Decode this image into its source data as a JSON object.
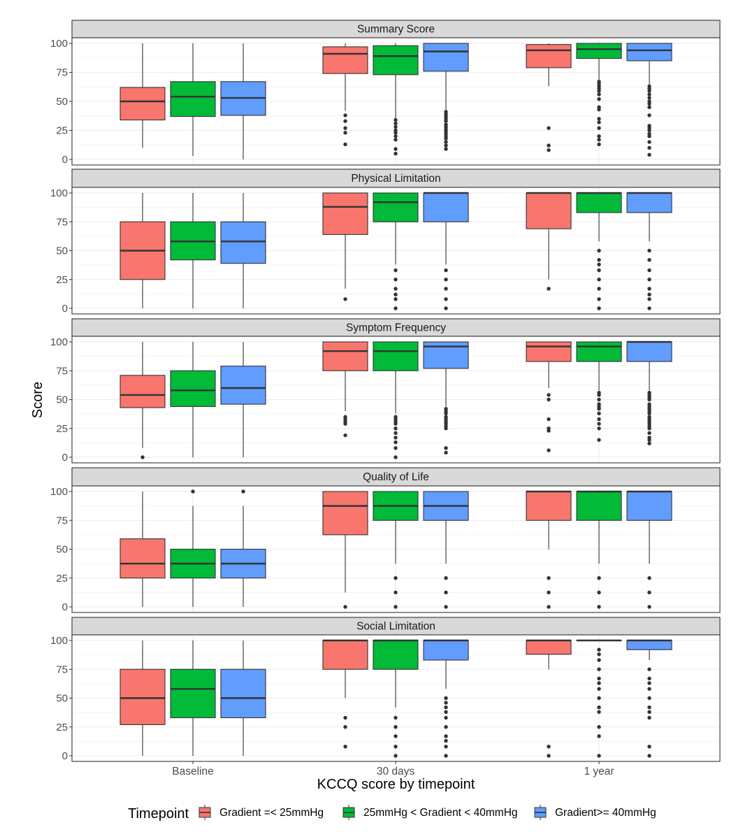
{
  "chart_data": {
    "type": "boxplot",
    "facet_layout": "vertical-stack",
    "ylabel": "Score",
    "xlabel": "KCCQ score by timepoint",
    "categories": [
      "Baseline",
      "30 days",
      "1 year"
    ],
    "ylim": [
      0,
      100
    ],
    "y_ticks": [
      0,
      25,
      50,
      75,
      100
    ],
    "grid": true,
    "legend": {
      "position": "bottom",
      "title": "Timepoint",
      "entries": [
        {
          "name": "Gradient =< 25mmHg",
          "color": "#F8766D"
        },
        {
          "name": "25mmHg < Gradient < 40mmHg",
          "color": "#00BA38"
        },
        {
          "name": "Gradient>= 40mmHg",
          "color": "#619CFF"
        }
      ]
    },
    "panels": [
      {
        "title": "Summary Score",
        "boxes": [
          {
            "category": "Baseline",
            "series": 0,
            "min": 10,
            "q1": 34,
            "median": 50,
            "q3": 62,
            "max": 100,
            "outliers": []
          },
          {
            "category": "Baseline",
            "series": 1,
            "min": 3,
            "q1": 37,
            "median": 54,
            "q3": 67,
            "max": 100,
            "outliers": []
          },
          {
            "category": "Baseline",
            "series": 2,
            "min": 0,
            "q1": 38,
            "median": 53,
            "q3": 67,
            "max": 100,
            "outliers": []
          },
          {
            "category": "30 days",
            "series": 0,
            "min": 42,
            "q1": 74,
            "median": 91,
            "q3": 97,
            "max": 100,
            "outliers": [
              38,
              33,
              27,
              23,
              13
            ]
          },
          {
            "category": "30 days",
            "series": 1,
            "min": 35,
            "q1": 73,
            "median": 89,
            "q3": 98,
            "max": 100,
            "outliers": [
              34,
              31,
              28,
              25,
              23,
              20,
              17,
              9,
              5
            ]
          },
          {
            "category": "30 days",
            "series": 2,
            "min": 42,
            "q1": 76,
            "median": 93,
            "q3": 100,
            "max": 100,
            "outliers": [
              41,
              39,
              37,
              35,
              33,
              30,
              28,
              26,
              24,
              22,
              20,
              18,
              15,
              12,
              9
            ]
          },
          {
            "category": "1 year",
            "series": 0,
            "min": 63,
            "q1": 79,
            "median": 94,
            "q3": 99,
            "max": 100,
            "outliers": [
              27,
              12,
              8
            ]
          },
          {
            "category": "1 year",
            "series": 1,
            "min": 68,
            "q1": 87,
            "median": 95,
            "q3": 100,
            "max": 100,
            "outliers": [
              67,
              65,
              63,
              61,
              59,
              56,
              52,
              45,
              43,
              35,
              32,
              27,
              20,
              17,
              13
            ]
          },
          {
            "category": "1 year",
            "series": 2,
            "min": 64,
            "q1": 85,
            "median": 94,
            "q3": 100,
            "max": 100,
            "outliers": [
              63,
              61,
              59,
              56,
              53,
              50,
              48,
              45,
              38,
              29,
              27,
              25,
              22,
              20,
              15,
              10,
              4
            ]
          }
        ]
      },
      {
        "title": "Physical Limitation",
        "boxes": [
          {
            "category": "Baseline",
            "series": 0,
            "min": 0,
            "q1": 25,
            "median": 50,
            "q3": 75,
            "max": 100,
            "outliers": []
          },
          {
            "category": "Baseline",
            "series": 1,
            "min": 0,
            "q1": 42,
            "median": 58,
            "q3": 75,
            "max": 100,
            "outliers": []
          },
          {
            "category": "Baseline",
            "series": 2,
            "min": 0,
            "q1": 39,
            "median": 58,
            "q3": 75,
            "max": 100,
            "outliers": []
          },
          {
            "category": "30 days",
            "series": 0,
            "min": 17,
            "q1": 64,
            "median": 88,
            "q3": 100,
            "max": 100,
            "outliers": [
              8
            ]
          },
          {
            "category": "30 days",
            "series": 1,
            "min": 38,
            "q1": 75,
            "median": 92,
            "q3": 100,
            "max": 100,
            "outliers": [
              33,
              25,
              17,
              12,
              8,
              0
            ]
          },
          {
            "category": "30 days",
            "series": 2,
            "min": 38,
            "q1": 75,
            "median": 100,
            "q3": 100,
            "max": 100,
            "outliers": [
              33,
              25,
              17,
              8,
              0
            ]
          },
          {
            "category": "1 year",
            "series": 0,
            "min": 25,
            "q1": 69,
            "median": 100,
            "q3": 100,
            "max": 100,
            "outliers": [
              17
            ]
          },
          {
            "category": "1 year",
            "series": 1,
            "min": 58,
            "q1": 83,
            "median": 100,
            "q3": 100,
            "max": 100,
            "outliers": [
              50,
              42,
              38,
              33,
              25,
              17,
              8,
              0
            ]
          },
          {
            "category": "1 year",
            "series": 2,
            "min": 58,
            "q1": 83,
            "median": 100,
            "q3": 100,
            "max": 100,
            "outliers": [
              50,
              42,
              33,
              25,
              17,
              12,
              8,
              0
            ]
          }
        ]
      },
      {
        "title": "Symptom Frequency",
        "boxes": [
          {
            "category": "Baseline",
            "series": 0,
            "min": 8,
            "q1": 43,
            "median": 54,
            "q3": 71,
            "max": 100,
            "outliers": [
              0
            ]
          },
          {
            "category": "Baseline",
            "series": 1,
            "min": 0,
            "q1": 44,
            "median": 58,
            "q3": 75,
            "max": 100,
            "outliers": []
          },
          {
            "category": "Baseline",
            "series": 2,
            "min": 0,
            "q1": 46,
            "median": 60,
            "q3": 79,
            "max": 100,
            "outliers": []
          },
          {
            "category": "30 days",
            "series": 0,
            "min": 40,
            "q1": 75,
            "median": 92,
            "q3": 100,
            "max": 100,
            "outliers": [
              35,
              33,
              31,
              29,
              19
            ]
          },
          {
            "category": "30 days",
            "series": 1,
            "min": 38,
            "q1": 75,
            "median": 92,
            "q3": 100,
            "max": 100,
            "outliers": [
              35,
              33,
              31,
              29,
              25,
              21,
              17,
              13,
              8,
              0
            ]
          },
          {
            "category": "30 days",
            "series": 2,
            "min": 44,
            "q1": 77,
            "median": 96,
            "q3": 100,
            "max": 100,
            "outliers": [
              42,
              40,
              38,
              35,
              33,
              31,
              29,
              27,
              25,
              8,
              4
            ]
          },
          {
            "category": "1 year",
            "series": 0,
            "min": 60,
            "q1": 83,
            "median": 96,
            "q3": 100,
            "max": 100,
            "outliers": [
              54,
              50,
              33,
              25,
              23,
              6
            ]
          },
          {
            "category": "1 year",
            "series": 1,
            "min": 58,
            "q1": 83,
            "median": 96,
            "q3": 100,
            "max": 100,
            "outliers": [
              56,
              54,
              50,
              46,
              44,
              42,
              38,
              33,
              29,
              25,
              15
            ]
          },
          {
            "category": "1 year",
            "series": 2,
            "min": 58,
            "q1": 83,
            "median": 100,
            "q3": 100,
            "max": 100,
            "outliers": [
              56,
              54,
              52,
              50,
              46,
              44,
              42,
              40,
              38,
              35,
              33,
              31,
              29,
              27,
              25,
              21,
              17,
              15,
              12
            ]
          }
        ]
      },
      {
        "title": "Quality of Life",
        "boxes": [
          {
            "category": "Baseline",
            "series": 0,
            "min": 0,
            "q1": 25,
            "median": 37.5,
            "q3": 59,
            "max": 100,
            "outliers": []
          },
          {
            "category": "Baseline",
            "series": 1,
            "min": 0,
            "q1": 25,
            "median": 37.5,
            "q3": 50,
            "max": 87.5,
            "outliers": [
              100
            ]
          },
          {
            "category": "Baseline",
            "series": 2,
            "min": 0,
            "q1": 25,
            "median": 37.5,
            "q3": 50,
            "max": 87.5,
            "outliers": [
              100
            ]
          },
          {
            "category": "30 days",
            "series": 0,
            "min": 12.5,
            "q1": 62.5,
            "median": 87.5,
            "q3": 100,
            "max": 100,
            "outliers": [
              0
            ]
          },
          {
            "category": "30 days",
            "series": 1,
            "min": 37.5,
            "q1": 75,
            "median": 87.5,
            "q3": 100,
            "max": 100,
            "outliers": [
              25,
              12.5,
              0
            ]
          },
          {
            "category": "30 days",
            "series": 2,
            "min": 37.5,
            "q1": 75,
            "median": 87.5,
            "q3": 100,
            "max": 100,
            "outliers": [
              25,
              12.5,
              0
            ]
          },
          {
            "category": "1 year",
            "series": 0,
            "min": 50,
            "q1": 75,
            "median": 100,
            "q3": 100,
            "max": 100,
            "outliers": [
              25,
              12.5,
              0
            ]
          },
          {
            "category": "1 year",
            "series": 1,
            "min": 37.5,
            "q1": 75,
            "median": 100,
            "q3": 100,
            "max": 100,
            "outliers": [
              25,
              12.5,
              0
            ]
          },
          {
            "category": "1 year",
            "series": 2,
            "min": 37.5,
            "q1": 75,
            "median": 100,
            "q3": 100,
            "max": 100,
            "outliers": [
              25,
              12.5,
              0
            ]
          }
        ]
      },
      {
        "title": "Social Limitation",
        "boxes": [
          {
            "category": "Baseline",
            "series": 0,
            "min": 0,
            "q1": 27,
            "median": 50,
            "q3": 75,
            "max": 100,
            "outliers": []
          },
          {
            "category": "Baseline",
            "series": 1,
            "min": 0,
            "q1": 33,
            "median": 58,
            "q3": 75,
            "max": 100,
            "outliers": []
          },
          {
            "category": "Baseline",
            "series": 2,
            "min": 0,
            "q1": 33,
            "median": 50,
            "q3": 75,
            "max": 100,
            "outliers": []
          },
          {
            "category": "30 days",
            "series": 0,
            "min": 50,
            "q1": 75,
            "median": 100,
            "q3": 100,
            "max": 100,
            "outliers": [
              33,
              25,
              8
            ]
          },
          {
            "category": "30 days",
            "series": 1,
            "min": 42,
            "q1": 75,
            "median": 100,
            "q3": 100,
            "max": 100,
            "outliers": [
              33,
              25,
              17,
              8,
              0
            ]
          },
          {
            "category": "30 days",
            "series": 2,
            "min": 58,
            "q1": 83,
            "median": 100,
            "q3": 100,
            "max": 100,
            "outliers": [
              50,
              46,
              42,
              38,
              33,
              25,
              17,
              13,
              8,
              0
            ]
          },
          {
            "category": "1 year",
            "series": 0,
            "min": 75,
            "q1": 88,
            "median": 100,
            "q3": 100,
            "max": 100,
            "outliers": [
              8,
              0
            ]
          },
          {
            "category": "1 year",
            "series": 1,
            "min": 100,
            "q1": 100,
            "median": 100,
            "q3": 100,
            "max": 100,
            "outliers": [
              92,
              88,
              83,
              75,
              67,
              63,
              58,
              50,
              42,
              38,
              25,
              17,
              0
            ]
          },
          {
            "category": "1 year",
            "series": 2,
            "min": 83,
            "q1": 92,
            "median": 100,
            "q3": 100,
            "max": 100,
            "outliers": [
              75,
              67,
              63,
              58,
              50,
              42,
              38,
              33,
              8,
              0
            ]
          }
        ]
      }
    ]
  }
}
